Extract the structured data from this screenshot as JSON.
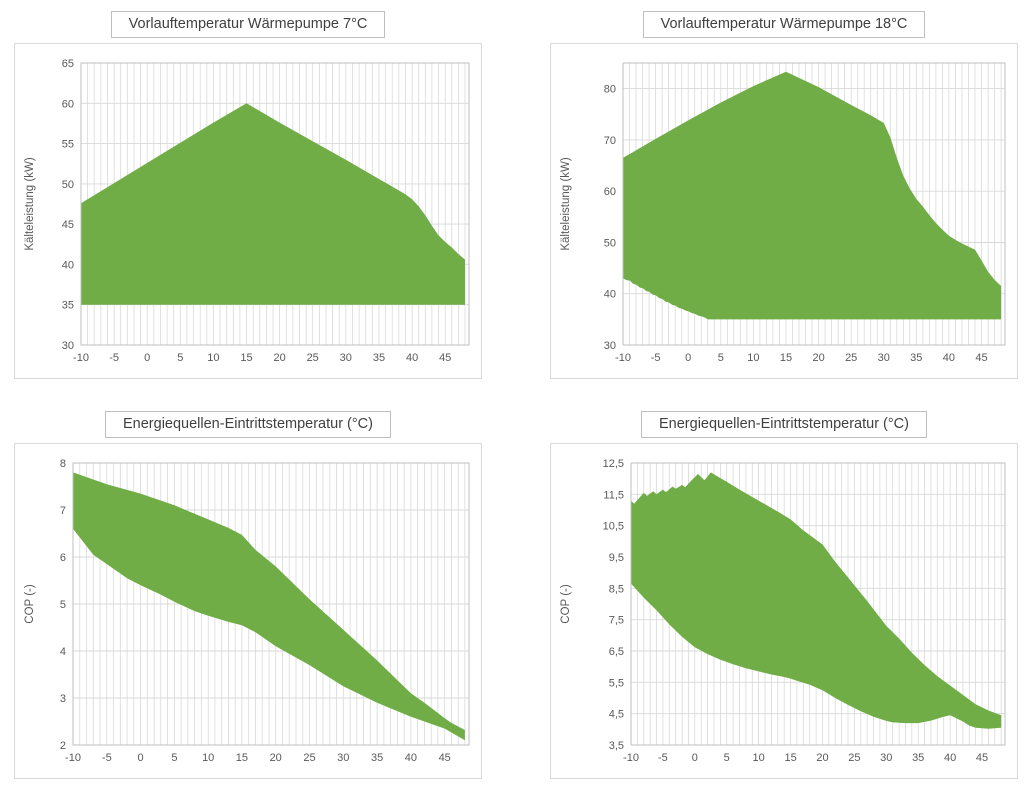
{
  "colors": {
    "area_green": "#70AD47",
    "gridline": "#D9D9D9",
    "plot_border": "#BFBFBF",
    "tick_label": "#595959",
    "title_text": "#404040",
    "title_border": "#BFBFBF"
  },
  "chart_data": [
    {
      "type": "area",
      "title": "Vorlauftemperatur Wärmepumpe 7°C",
      "xlabel": "",
      "ylabel": "Kälteleistung (kW)",
      "xlim": [
        -10,
        48.6
      ],
      "ylim": [
        30,
        65
      ],
      "grid": {
        "x_minor_step": 1,
        "y_lines_at_ticks": true
      },
      "legend": "none",
      "xticks": [
        -10,
        -5,
        0,
        5,
        10,
        15,
        20,
        25,
        30,
        35,
        40,
        45
      ],
      "xtick_labels": [
        "-10",
        "-5",
        "0",
        "5",
        "10",
        "15",
        "20",
        "25",
        "30",
        "35",
        "40",
        "45"
      ],
      "ytick_values": [
        30,
        35,
        40,
        45,
        50,
        55,
        60,
        65
      ],
      "ytick_labels": [
        "30",
        "35",
        "40",
        "45",
        "50",
        "55",
        "60",
        "65"
      ],
      "band": {
        "upper": [
          [
            -10,
            47.6
          ],
          [
            -5,
            50.1
          ],
          [
            0,
            52.6
          ],
          [
            5,
            55.1
          ],
          [
            10,
            57.6
          ],
          [
            15,
            60
          ],
          [
            20,
            57.6
          ],
          [
            25,
            55.3
          ],
          [
            30,
            53
          ],
          [
            35,
            50.6
          ],
          [
            39,
            48.7
          ],
          [
            40,
            48.1
          ],
          [
            41,
            47.2
          ],
          [
            42,
            46.1
          ],
          [
            43,
            44.8
          ],
          [
            44,
            43.6
          ],
          [
            45,
            42.8
          ],
          [
            46,
            42.1
          ],
          [
            47,
            41.3
          ],
          [
            48,
            40.6
          ]
        ],
        "lower": [
          [
            -10,
            35
          ],
          [
            48,
            35
          ]
        ]
      },
      "layout": {
        "margins": {
          "l": 66,
          "r": 12,
          "t": 19,
          "b": 33
        }
      }
    },
    {
      "type": "area",
      "title": "Vorlauftemperatur Wärmepumpe 18°C",
      "xlabel": "",
      "ylabel": "Kälteleistung (kW)",
      "xlim": [
        -10,
        48.6
      ],
      "ylim": [
        30,
        85
      ],
      "grid": {
        "x_minor_step": 1,
        "y_lines_at_ticks": true
      },
      "legend": "none",
      "xticks": [
        -10,
        -5,
        0,
        5,
        10,
        15,
        20,
        25,
        30,
        35,
        40,
        45
      ],
      "xtick_labels": [
        "-10",
        "-5",
        "0",
        "5",
        "10",
        "15",
        "20",
        "25",
        "30",
        "35",
        "40",
        "45"
      ],
      "ytick_values": [
        30,
        40,
        50,
        60,
        70,
        80
      ],
      "ytick_labels": [
        "30",
        "40",
        "50",
        "60",
        "70",
        "80"
      ],
      "band": {
        "upper": [
          [
            -10,
            66.5
          ],
          [
            -5,
            70.2
          ],
          [
            0,
            73.8
          ],
          [
            5,
            77.3
          ],
          [
            10,
            80.5
          ],
          [
            15,
            83.3
          ],
          [
            20,
            80.3
          ],
          [
            25,
            76.8
          ],
          [
            28,
            74.8
          ],
          [
            30,
            73.3
          ],
          [
            31,
            70.5
          ],
          [
            32,
            66.5
          ],
          [
            33,
            63
          ],
          [
            34,
            60.5
          ],
          [
            35,
            58.5
          ],
          [
            36,
            57
          ],
          [
            37,
            55.3
          ],
          [
            38,
            53.8
          ],
          [
            39,
            52.5
          ],
          [
            40,
            51.3
          ],
          [
            41,
            50.5
          ],
          [
            42,
            49.8
          ],
          [
            43,
            49.2
          ],
          [
            44,
            48.6
          ],
          [
            45,
            46.5
          ],
          [
            46,
            44.3
          ],
          [
            47,
            42.7
          ],
          [
            48,
            41.5
          ]
        ],
        "lower": [
          [
            -10,
            43
          ],
          [
            -9.4,
            42.6
          ],
          [
            -9,
            42.6
          ],
          [
            -8.4,
            41.9
          ],
          [
            -8,
            41.8
          ],
          [
            -7.4,
            41.2
          ],
          [
            -7,
            41.1
          ],
          [
            -6.4,
            40.5
          ],
          [
            -6,
            40.4
          ],
          [
            -5.4,
            39.8
          ],
          [
            -5,
            39.7
          ],
          [
            -4.4,
            39.1
          ],
          [
            -4,
            39
          ],
          [
            -3.4,
            38.4
          ],
          [
            -3,
            38.3
          ],
          [
            -2.4,
            37.8
          ],
          [
            -2,
            37.7
          ],
          [
            -1.4,
            37.2
          ],
          [
            -1,
            37.1
          ],
          [
            -0.4,
            36.7
          ],
          [
            0,
            36.6
          ],
          [
            0.6,
            36.2
          ],
          [
            1,
            36.1
          ],
          [
            1.6,
            35.7
          ],
          [
            2,
            35.6
          ],
          [
            2.6,
            35.3
          ],
          [
            3,
            35
          ],
          [
            48,
            35
          ]
        ]
      },
      "layout": {
        "margins": {
          "l": 72,
          "r": 12,
          "t": 19,
          "b": 33
        }
      }
    },
    {
      "type": "area",
      "title": "Energiequellen-Eintrittstemperatur (°C)",
      "xlabel": "",
      "ylabel": "COP (-)",
      "xlim": [
        -10,
        48.6
      ],
      "ylim": [
        2,
        8
      ],
      "grid": {
        "x_minor_step": 1,
        "y_lines_at_ticks": true
      },
      "legend": "none",
      "xticks": [
        -10,
        -5,
        0,
        5,
        10,
        15,
        20,
        25,
        30,
        35,
        40,
        45
      ],
      "xtick_labels": [
        "-10",
        "-5",
        "0",
        "5",
        "10",
        "15",
        "20",
        "25",
        "30",
        "35",
        "40",
        "45"
      ],
      "ytick_values": [
        2,
        3,
        4,
        5,
        6,
        7,
        8
      ],
      "ytick_labels": [
        "2",
        "3",
        "4",
        "5",
        "6",
        "7",
        "8"
      ],
      "band": {
        "upper": [
          [
            -10,
            7.8
          ],
          [
            -5,
            7.55
          ],
          [
            0,
            7.35
          ],
          [
            5,
            7.1
          ],
          [
            10,
            6.8
          ],
          [
            13,
            6.62
          ],
          [
            15,
            6.47
          ],
          [
            17,
            6.15
          ],
          [
            20,
            5.8
          ],
          [
            25,
            5.1
          ],
          [
            30,
            4.45
          ],
          [
            35,
            3.8
          ],
          [
            40,
            3.1
          ],
          [
            42,
            2.9
          ],
          [
            44,
            2.68
          ],
          [
            45,
            2.57
          ],
          [
            46,
            2.47
          ],
          [
            48,
            2.32
          ]
        ],
        "lower": [
          [
            -10,
            6.6
          ],
          [
            -7,
            6.05
          ],
          [
            -5,
            5.85
          ],
          [
            -2,
            5.55
          ],
          [
            0,
            5.4
          ],
          [
            3,
            5.2
          ],
          [
            5,
            5.05
          ],
          [
            8,
            4.85
          ],
          [
            10,
            4.75
          ],
          [
            13,
            4.62
          ],
          [
            15,
            4.55
          ],
          [
            17,
            4.4
          ],
          [
            20,
            4.1
          ],
          [
            25,
            3.7
          ],
          [
            30,
            3.25
          ],
          [
            35,
            2.9
          ],
          [
            40,
            2.6
          ],
          [
            45,
            2.35
          ],
          [
            48,
            2.1
          ]
        ]
      },
      "layout": {
        "margins": {
          "l": 58,
          "r": 12,
          "t": 19,
          "b": 33
        }
      }
    },
    {
      "type": "area",
      "title": "Energiequellen-Eintrittstemperatur (°C)",
      "xlabel": "",
      "ylabel": "COP (-)",
      "xlim": [
        -10,
        48.6
      ],
      "ylim": [
        3.5,
        12.5
      ],
      "grid": {
        "x_minor_step": 1,
        "y_lines_at_ticks": true
      },
      "legend": "none",
      "xticks": [
        -10,
        -5,
        0,
        5,
        10,
        15,
        20,
        25,
        30,
        35,
        40,
        45
      ],
      "xtick_labels": [
        "-10",
        "-5",
        "0",
        "5",
        "10",
        "15",
        "20",
        "25",
        "30",
        "35",
        "40",
        "45"
      ],
      "ytick_values": [
        3.5,
        4.5,
        5.5,
        6.5,
        7.5,
        8.5,
        9.5,
        10.5,
        11.5,
        12.5
      ],
      "ytick_labels": [
        "3,5",
        "4,5",
        "5,5",
        "6,5",
        "7,5",
        "8,5",
        "9,5",
        "10,5",
        "11,5",
        "12,5"
      ],
      "band": {
        "upper": [
          [
            -10,
            11.3
          ],
          [
            -9.5,
            11.2
          ],
          [
            -8,
            11.55
          ],
          [
            -7.5,
            11.45
          ],
          [
            -6.5,
            11.6
          ],
          [
            -6,
            11.5
          ],
          [
            -5,
            11.65
          ],
          [
            -4.5,
            11.57
          ],
          [
            -3.5,
            11.75
          ],
          [
            -3,
            11.68
          ],
          [
            -2,
            11.8
          ],
          [
            -1.5,
            11.73
          ],
          [
            -0.5,
            11.95
          ],
          [
            0.5,
            12.15
          ],
          [
            1.5,
            11.95
          ],
          [
            2.5,
            12.2
          ],
          [
            3.5,
            12.08
          ],
          [
            5,
            11.9
          ],
          [
            7,
            11.65
          ],
          [
            10,
            11.3
          ],
          [
            13,
            10.95
          ],
          [
            15,
            10.7
          ],
          [
            17,
            10.35
          ],
          [
            19,
            10.05
          ],
          [
            20,
            9.9
          ],
          [
            22,
            9.35
          ],
          [
            25,
            8.6
          ],
          [
            27,
            8.1
          ],
          [
            30,
            7.3
          ],
          [
            32,
            6.9
          ],
          [
            34,
            6.45
          ],
          [
            36,
            6.05
          ],
          [
            38,
            5.7
          ],
          [
            40,
            5.4
          ],
          [
            42,
            5.1
          ],
          [
            44,
            4.8
          ],
          [
            46,
            4.6
          ],
          [
            48,
            4.45
          ]
        ],
        "lower": [
          [
            -10,
            8.65
          ],
          [
            -8,
            8.2
          ],
          [
            -6,
            7.8
          ],
          [
            -4,
            7.35
          ],
          [
            -2,
            6.95
          ],
          [
            0,
            6.62
          ],
          [
            2,
            6.4
          ],
          [
            4,
            6.22
          ],
          [
            6,
            6.08
          ],
          [
            8,
            5.95
          ],
          [
            10,
            5.85
          ],
          [
            12,
            5.75
          ],
          [
            14,
            5.67
          ],
          [
            15,
            5.62
          ],
          [
            16,
            5.55
          ],
          [
            18,
            5.42
          ],
          [
            20,
            5.25
          ],
          [
            22,
            5.0
          ],
          [
            24,
            4.78
          ],
          [
            26,
            4.58
          ],
          [
            28,
            4.4
          ],
          [
            30,
            4.27
          ],
          [
            31,
            4.22
          ],
          [
            33,
            4.2
          ],
          [
            35,
            4.2
          ],
          [
            37,
            4.28
          ],
          [
            39,
            4.4
          ],
          [
            40,
            4.45
          ],
          [
            41,
            4.35
          ],
          [
            42,
            4.25
          ],
          [
            43,
            4.12
          ],
          [
            44,
            4.05
          ],
          [
            46,
            4.02
          ],
          [
            48,
            4.05
          ]
        ]
      },
      "layout": {
        "margins": {
          "l": 80,
          "r": 12,
          "t": 19,
          "b": 33
        }
      }
    }
  ]
}
